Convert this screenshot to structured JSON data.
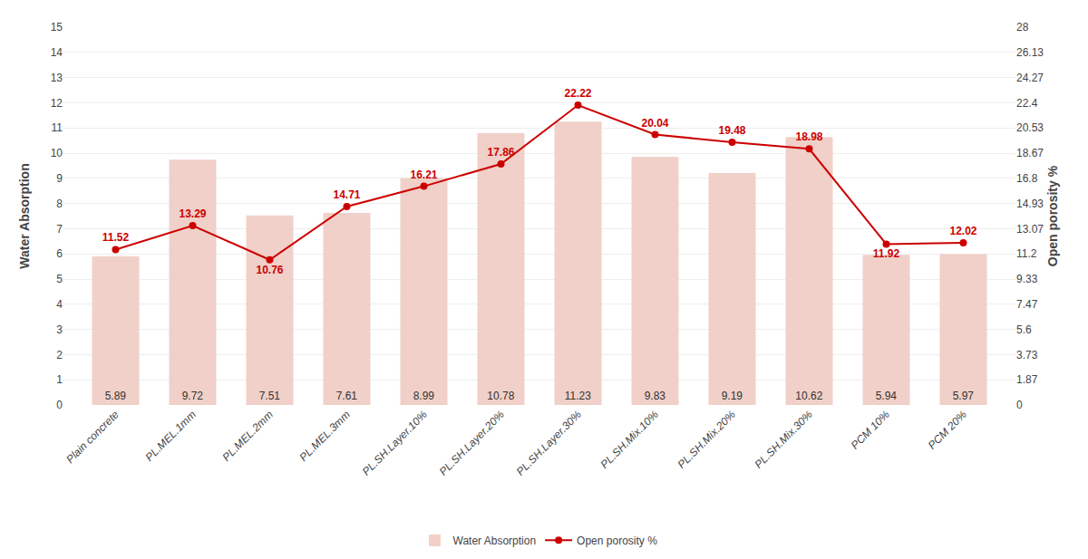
{
  "chart_data": {
    "type": "bar",
    "categories": [
      "Plain concrete",
      "PL.MEL.1mm",
      "PL.MEL.2mm",
      "PL.MEL.3mm",
      "PL.SH.Layer.10%",
      "PL.SH.Layer.20%",
      "PL.SH.Layer.30%",
      "PL.SH.Mix.10%",
      "PL.SH.Mix.20%",
      "PL.SH.Mix.30%",
      "PCM 10%",
      "PCM 20%"
    ],
    "series": [
      {
        "name": "Water Absorption",
        "type": "bar",
        "color": "#f0d0c8",
        "values": [
          5.89,
          9.72,
          7.51,
          7.61,
          8.99,
          10.78,
          11.23,
          9.83,
          9.19,
          10.62,
          5.94,
          5.97
        ]
      },
      {
        "name": "Open porosity %",
        "type": "line",
        "axis": "y2",
        "color": "#cc0000",
        "marker": "circle",
        "values": [
          11.52,
          13.29,
          10.76,
          14.71,
          16.21,
          17.86,
          22.22,
          20.04,
          19.48,
          18.98,
          11.92,
          12.02
        ]
      }
    ],
    "ylabel": "Water Absorption",
    "y2label": "Open porosity %",
    "ylim": [
      0,
      15
    ],
    "yticks": [
      0,
      1,
      2,
      3,
      4,
      5,
      6,
      7,
      8,
      9,
      10,
      11,
      12,
      13,
      14,
      15
    ],
    "y2lim": [
      0,
      28
    ],
    "y2ticks": [
      0,
      1.87,
      3.73,
      5.6,
      7.47,
      9.33,
      11.2,
      13.07,
      14.93,
      16.8,
      18.67,
      20.53,
      22.4,
      24.27,
      26.13,
      28
    ],
    "grid": true,
    "legend": "bottom",
    "data_labels": true
  }
}
